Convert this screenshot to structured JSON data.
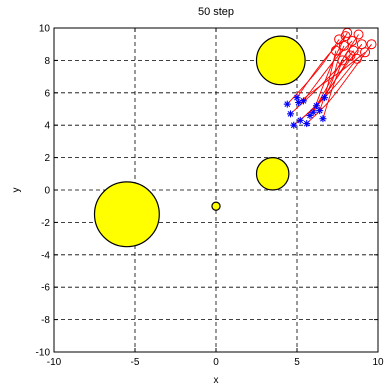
{
  "chart_data": {
    "type": "scatter",
    "title": "50 step",
    "xlabel": "x",
    "ylabel": "y",
    "xlim": [
      -10,
      10
    ],
    "ylim": [
      -10,
      10
    ],
    "xticks": [
      -10,
      -5,
      0,
      5,
      10
    ],
    "yticks": [
      -10,
      -8,
      -6,
      -4,
      -2,
      0,
      2,
      4,
      6,
      8,
      10
    ],
    "grid": true,
    "grid_style": "dashed",
    "colors": {
      "obstacle_fill": "#ffff00",
      "obstacle_edge": "#000000",
      "trajectory": "#ff0000",
      "start_marker": "#0000ff",
      "goal_marker": "#ff0000",
      "grid": "#000000"
    },
    "obstacles": [
      {
        "cx": 4.0,
        "cy": 8.0,
        "r": 1.5
      },
      {
        "cx": 3.5,
        "cy": 1.0,
        "r": 1.0
      },
      {
        "cx": 0.0,
        "cy": -1.0,
        "r": 0.25
      },
      {
        "cx": -5.5,
        "cy": -1.5,
        "r": 2.0
      }
    ],
    "series": [
      {
        "marker": "asterisk",
        "x": [
          4.4,
          5.0,
          5.4,
          6.2,
          6.7,
          4.6,
          5.2,
          5.8,
          6.4,
          4.8,
          5.6,
          6.0,
          6.6,
          5.1
        ],
        "y": [
          5.3,
          5.7,
          5.5,
          5.2,
          5.7,
          4.7,
          4.3,
          4.6,
          4.9,
          4.0,
          4.1,
          4.8,
          4.4,
          5.4
        ]
      },
      {
        "marker": "circle",
        "x": [
          7.6,
          8.0,
          8.4,
          8.8,
          7.9,
          8.5,
          9.0,
          8.3,
          7.4,
          8.7,
          9.6,
          8.1,
          7.8,
          9.2
        ],
        "y": [
          9.3,
          9.5,
          9.2,
          9.6,
          8.9,
          8.6,
          9.0,
          8.3,
          8.6,
          8.1,
          9.0,
          9.7,
          8.0,
          8.5
        ]
      }
    ],
    "trajectories": [
      [
        [
          4.4,
          5.3
        ],
        [
          5.6,
          6.6
        ],
        [
          6.6,
          7.8
        ],
        [
          7.6,
          9.3
        ]
      ],
      [
        [
          5.0,
          5.7
        ],
        [
          5.9,
          7.0
        ],
        [
          6.9,
          8.3
        ],
        [
          8.0,
          9.5
        ]
      ],
      [
        [
          5.4,
          5.5
        ],
        [
          6.3,
          6.7
        ],
        [
          7.3,
          8.0
        ],
        [
          8.4,
          9.2
        ]
      ],
      [
        [
          6.2,
          5.2
        ],
        [
          7.0,
          6.6
        ],
        [
          7.9,
          8.2
        ],
        [
          8.8,
          9.6
        ]
      ],
      [
        [
          6.7,
          5.7
        ],
        [
          7.2,
          6.8
        ],
        [
          7.5,
          7.9
        ],
        [
          7.9,
          8.9
        ]
      ],
      [
        [
          4.6,
          4.7
        ],
        [
          5.9,
          5.9
        ],
        [
          7.2,
          7.2
        ],
        [
          8.5,
          8.6
        ]
      ],
      [
        [
          5.2,
          4.3
        ],
        [
          6.5,
          5.6
        ],
        [
          7.8,
          7.4
        ],
        [
          9.0,
          9.0
        ]
      ],
      [
        [
          5.8,
          4.6
        ],
        [
          6.7,
          5.8
        ],
        [
          7.5,
          7.0
        ],
        [
          8.3,
          8.3
        ]
      ],
      [
        [
          6.4,
          4.9
        ],
        [
          6.8,
          6.1
        ],
        [
          7.1,
          7.3
        ],
        [
          7.4,
          8.6
        ]
      ],
      [
        [
          4.8,
          4.0
        ],
        [
          6.2,
          5.2
        ],
        [
          7.5,
          6.6
        ],
        [
          8.7,
          8.1
        ]
      ],
      [
        [
          5.6,
          4.1
        ],
        [
          7.0,
          5.5
        ],
        [
          8.3,
          7.2
        ],
        [
          9.6,
          9.0
        ]
      ],
      [
        [
          6.0,
          4.8
        ],
        [
          6.6,
          6.4
        ],
        [
          7.3,
          8.1
        ],
        [
          8.1,
          9.7
        ]
      ],
      [
        [
          6.6,
          4.4
        ],
        [
          7.0,
          5.7
        ],
        [
          7.4,
          6.9
        ],
        [
          7.8,
          8.0
        ]
      ],
      [
        [
          5.1,
          5.4
        ],
        [
          6.4,
          6.4
        ],
        [
          7.8,
          7.4
        ],
        [
          9.2,
          8.5
        ]
      ]
    ]
  }
}
